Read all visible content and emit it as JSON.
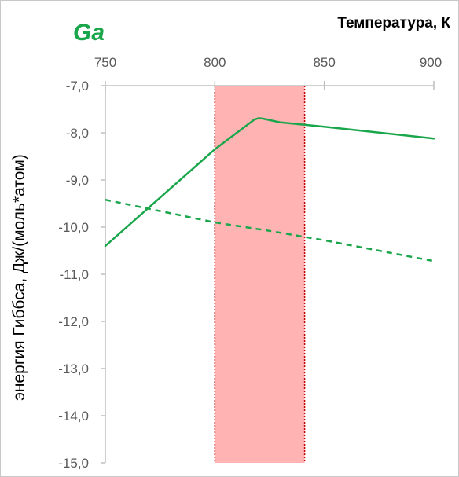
{
  "chart_data": {
    "type": "line",
    "title": "Ga",
    "xlabel": "Температура, К",
    "ylabel": "энергия Гиббса, Дж/(моль*атом)",
    "x_ticks": [
      750,
      800,
      850,
      900
    ],
    "y_ticks": [
      -7.0,
      -8.0,
      -9.0,
      -10.0,
      -11.0,
      -12.0,
      -13.0,
      -14.0,
      -15.0
    ],
    "y_tick_labels": [
      "-7,0",
      "-8,0",
      "-9,0",
      "-10,0",
      "-11,0",
      "-12,0",
      "-13,0",
      "-14,0",
      "-15,0"
    ],
    "xlim": [
      750,
      900
    ],
    "ylim": [
      -15.0,
      -7.0
    ],
    "x_axis_position": "top",
    "grid": false,
    "highlight_band": {
      "x_range": [
        800,
        841
      ],
      "color": "#ffb3b3",
      "border_color": "#c00000"
    },
    "series": [
      {
        "style": "solid",
        "color": "#1aa64b",
        "points": [
          [
            750,
            -10.4
          ],
          [
            800,
            -8.35
          ],
          [
            818,
            -7.72
          ],
          [
            820,
            -7.69
          ],
          [
            822,
            -7.7
          ],
          [
            830,
            -7.78
          ],
          [
            850,
            -7.87
          ],
          [
            900,
            -8.12
          ]
        ]
      },
      {
        "style": "dashed",
        "color": "#1aa64b",
        "points": [
          [
            750,
            -9.42
          ],
          [
            775,
            -9.66
          ],
          [
            800,
            -9.9
          ],
          [
            825,
            -10.08
          ],
          [
            850,
            -10.28
          ],
          [
            875,
            -10.5
          ],
          [
            900,
            -10.72
          ]
        ]
      }
    ],
    "colors": {
      "title": "#1aa64b",
      "axis": "#bfbfbf",
      "tick_text": "#595959"
    }
  }
}
